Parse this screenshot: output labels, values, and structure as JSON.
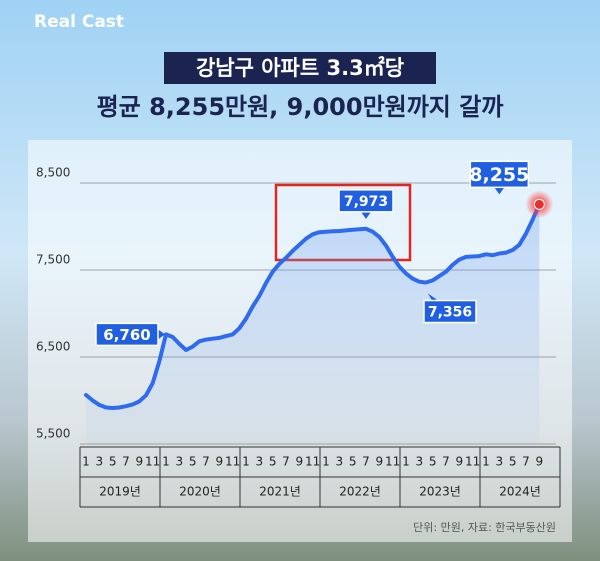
{
  "brand": "Real Cast",
  "chart_data": {
    "type": "line",
    "title": "강남구 아파트 3.3㎡당",
    "subtitle": "평균 8,255만원, 9,000만원까지 갈까",
    "note": "단위: 만원, 자료: 한국부동산원",
    "categories": [
      "1",
      null,
      "3",
      null,
      "5",
      null,
      "7",
      null,
      "9",
      null,
      "11",
      null,
      "1",
      null,
      "3",
      null,
      "5",
      null,
      "7",
      null,
      "9",
      null,
      "11",
      null,
      "1",
      null,
      "3",
      null,
      "5",
      null,
      "7",
      null,
      "9",
      null,
      "11",
      null,
      "1",
      null,
      "3",
      null,
      "5",
      null,
      "7",
      null,
      "9",
      null,
      "11",
      null,
      "1",
      null,
      "3",
      null,
      "5",
      null,
      "7",
      null,
      "9",
      null,
      "11",
      null,
      "1",
      null,
      "3",
      null,
      "5",
      null,
      "7",
      null,
      "9"
    ],
    "years": [
      "2019년",
      "2020년",
      "2021년",
      "2022년",
      "2023년",
      "2024년"
    ],
    "series": [
      {
        "color": "#2f6bf0",
        "values": [
          6063,
          6000,
          5950,
          5920,
          5914,
          5920,
          5935,
          5955,
          5990,
          6060,
          6200,
          6450,
          6760,
          6730,
          6650,
          6580,
          6620,
          6680,
          6700,
          6710,
          6720,
          6740,
          6760,
          6830,
          6940,
          7080,
          7200,
          7350,
          7480,
          7570,
          7640,
          7720,
          7790,
          7860,
          7910,
          7935,
          7940,
          7945,
          7948,
          7955,
          7962,
          7968,
          7973,
          7940,
          7880,
          7780,
          7650,
          7540,
          7460,
          7400,
          7365,
          7356,
          7380,
          7430,
          7480,
          7560,
          7620,
          7650,
          7655,
          7660,
          7680,
          7670,
          7690,
          7700,
          7730,
          7790,
          7920,
          8080,
          8255
        ],
        "value_labels": [
          null,
          null,
          null,
          null,
          null,
          null,
          null,
          null,
          null,
          null,
          null,
          null,
          "6,760",
          null,
          null,
          null,
          null,
          null,
          null,
          null,
          null,
          null,
          null,
          null,
          null,
          null,
          null,
          null,
          null,
          null,
          null,
          null,
          null,
          null,
          null,
          null,
          null,
          null,
          null,
          null,
          null,
          null,
          "7,973",
          null,
          null,
          null,
          null,
          null,
          null,
          null,
          null,
          "7,356",
          null,
          null,
          null,
          null,
          null,
          null,
          null,
          null,
          null,
          null,
          null,
          null,
          null,
          null,
          null,
          null,
          "8,255"
        ]
      }
    ],
    "ylim": [
      5500,
      8500
    ],
    "yticks": [
      {
        "value": 5500,
        "label": "5,500"
      },
      {
        "value": 6500,
        "label": "6,500"
      },
      {
        "value": 7500,
        "label": "7,500"
      },
      {
        "value": 8500,
        "label": "8,500"
      }
    ],
    "grid": true
  }
}
